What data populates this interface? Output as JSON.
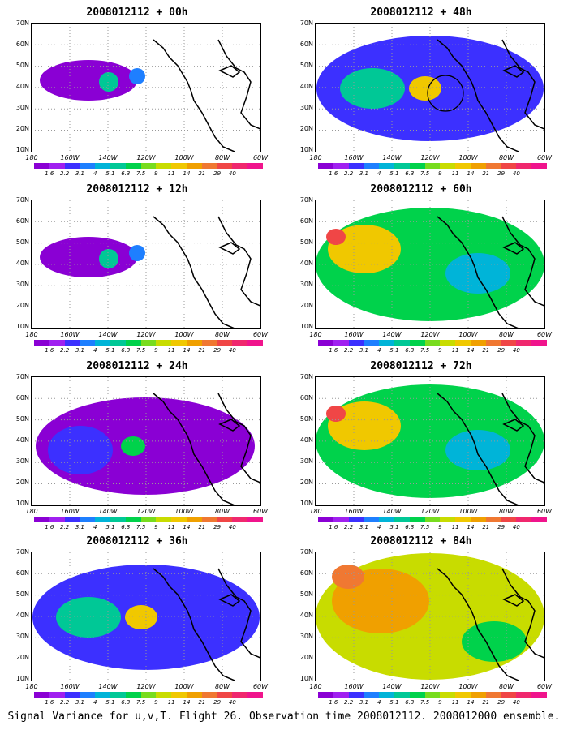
{
  "panels": [
    {
      "title": "2008012112 + 00h",
      "level": 0
    },
    {
      "title": "2008012112 + 48h",
      "level": 2
    },
    {
      "title": "2008012112 + 12h",
      "level": 0
    },
    {
      "title": "2008012112 + 60h",
      "level": 3
    },
    {
      "title": "2008012112 + 24h",
      "level": 1
    },
    {
      "title": "2008012112 + 72h",
      "level": 3
    },
    {
      "title": "2008012112 + 36h",
      "level": 2
    },
    {
      "title": "2008012112 + 84h",
      "level": 4
    }
  ],
  "y_axis_labels": [
    "70N",
    "60N",
    "50N",
    "40N",
    "30N",
    "20N",
    "10N"
  ],
  "x_axis_labels": [
    "180",
    "160W",
    "140W",
    "120W",
    "100W",
    "80W",
    "60W"
  ],
  "colorbar": {
    "colors": [
      "#8a00d4",
      "#a020f0",
      "#3c30ff",
      "#1e7fff",
      "#00b4d8",
      "#00c896",
      "#00d24b",
      "#78dc1e",
      "#c8dc00",
      "#f0c800",
      "#f0a000",
      "#f07832",
      "#f04646",
      "#f0286e",
      "#f0148c"
    ],
    "labels": [
      "1.6",
      "2.2",
      "3.1",
      "4",
      "5.1",
      "6.3",
      "7.5",
      "9",
      "11",
      "14",
      "21",
      "29",
      "40"
    ]
  },
  "caption": "Signal Variance for u,v,T. Flight 26. Observation time 2008012112. 2008012000 ensemble."
}
